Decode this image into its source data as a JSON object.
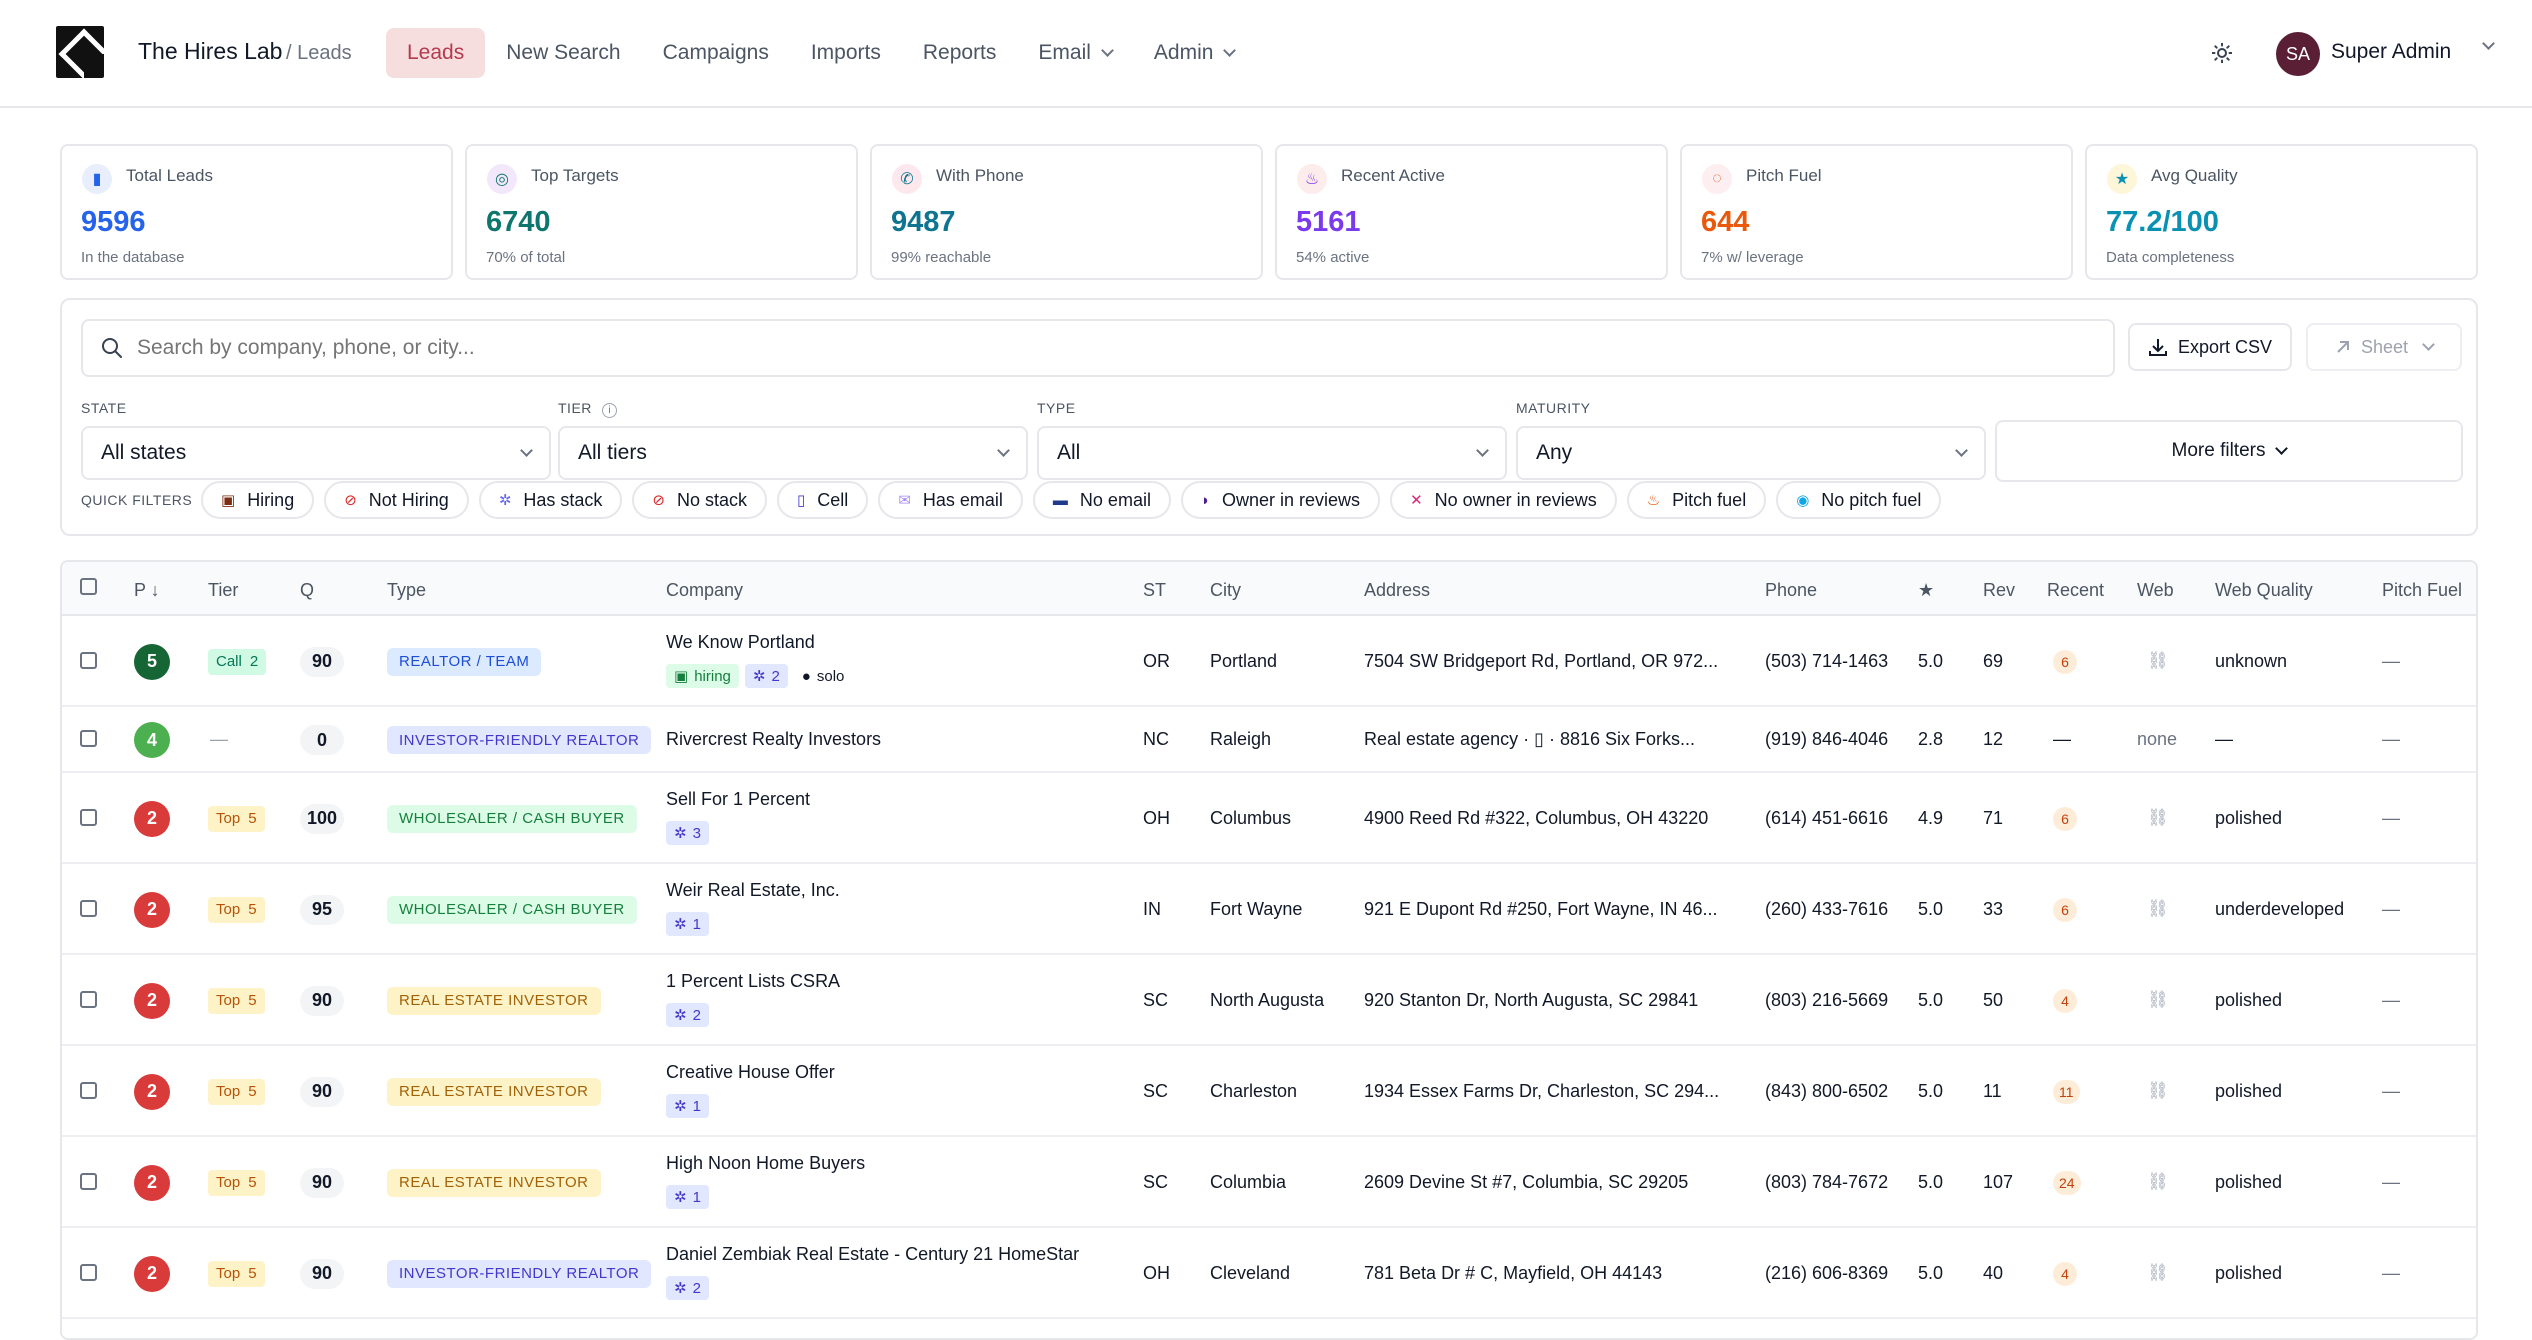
{
  "header": {
    "brand": "The Hires Lab",
    "breadcrumb": "/ Leads",
    "nav": [
      {
        "label": "Leads",
        "active": true,
        "dropdown": false
      },
      {
        "label": "New Search",
        "active": false,
        "dropdown": false
      },
      {
        "label": "Campaigns",
        "active": false,
        "dropdown": false
      },
      {
        "label": "Imports",
        "active": false,
        "dropdown": false
      },
      {
        "label": "Reports",
        "active": false,
        "dropdown": false
      },
      {
        "label": "Email",
        "active": false,
        "dropdown": true
      },
      {
        "label": "Admin",
        "active": false,
        "dropdown": true
      }
    ],
    "avatar_initials": "SA",
    "user_name": "Super Admin"
  },
  "stats": [
    {
      "label": "Total Leads",
      "value": "9596",
      "sub": "In the database",
      "color": "#2563eb",
      "icon": "bar-chart-icon",
      "glyph": "▮",
      "bg": "#e8eefc"
    },
    {
      "label": "Top Targets",
      "value": "6740",
      "sub": "70% of total",
      "color": "#0f766e",
      "icon": "target-icon",
      "glyph": "◎",
      "bg": "#f3e8fb"
    },
    {
      "label": "With Phone",
      "value": "9487",
      "sub": "99% reachable",
      "color": "#0e7490",
      "icon": "phone-icon",
      "glyph": "✆",
      "bg": "#fde8ee"
    },
    {
      "label": "Recent Active",
      "value": "5161",
      "sub": "54% active",
      "color": "#7c3aed",
      "icon": "fire-icon",
      "glyph": "♨",
      "bg": "#fdecec"
    },
    {
      "label": "Pitch Fuel",
      "value": "644",
      "sub": "7% w/ leverage",
      "color": "#ea580c",
      "icon": "speech-icon",
      "glyph": "◌",
      "bg": "#fdeef1"
    },
    {
      "label": "Avg Quality",
      "value": "77.2/100",
      "sub": "Data completeness",
      "color": "#0891b2",
      "icon": "star-icon",
      "glyph": "★",
      "bg": "#fdf6d8"
    }
  ],
  "filters": {
    "search_placeholder": "Search by company, phone, or city...",
    "export_label": "Export CSV",
    "sheet_label": "Sheet",
    "state_label": "STATE",
    "state_value": "All states",
    "tier_label": "TIER",
    "tier_info": "i",
    "tier_value": "All tiers",
    "type_label": "TYPE",
    "type_value": "All",
    "maturity_label": "MATURITY",
    "maturity_value": "Any",
    "more_label": "More filters",
    "quick_label": "QUICK FILTERS",
    "quick": [
      {
        "label": "Hiring",
        "icon": "briefcase-icon",
        "glyph": "▣",
        "color": "#7c2d12"
      },
      {
        "label": "Not Hiring",
        "icon": "no-entry-icon",
        "glyph": "⊘",
        "color": "#dc2626"
      },
      {
        "label": "Has stack",
        "icon": "gear-icon",
        "glyph": "✲",
        "color": "#6366f1"
      },
      {
        "label": "No stack",
        "icon": "prohibited-icon",
        "glyph": "⊘",
        "color": "#dc2626"
      },
      {
        "label": "Cell",
        "icon": "mobile-icon",
        "glyph": "▯",
        "color": "#4338ca"
      },
      {
        "label": "Has email",
        "icon": "envelope-icon",
        "glyph": "✉",
        "color": "#a78bfa"
      },
      {
        "label": "No email",
        "icon": "mailbox-icon",
        "glyph": "▬",
        "color": "#1e3a8a"
      },
      {
        "label": "Owner in reviews",
        "icon": "speaking-head-icon",
        "glyph": "◗",
        "color": "#4c1d95"
      },
      {
        "label": "No owner in reviews",
        "icon": "muted-icon",
        "glyph": "✕",
        "color": "#db2777"
      },
      {
        "label": "Pitch fuel",
        "icon": "fire-icon",
        "glyph": "♨",
        "color": "#ea580c"
      },
      {
        "label": "No pitch fuel",
        "icon": "droplet-icon",
        "glyph": "◉",
        "color": "#0ea5e9"
      }
    ]
  },
  "table": {
    "columns": [
      "P ↓",
      "Tier",
      "Q",
      "Type",
      "Company",
      "ST",
      "City",
      "Address",
      "Phone",
      "★",
      "Rev",
      "Recent",
      "Web",
      "Web Quality",
      "Pitch Fuel"
    ],
    "rows": [
      {
        "p": "5",
        "p_color": "#166534",
        "tier": "Call",
        "tier_num": "2",
        "tier_style": "call",
        "q": "90",
        "type": "REALTOR / TEAM",
        "type_style": "blue",
        "company": "We Know Portland",
        "tags": [
          {
            "icon": "briefcase-icon",
            "glyph": "▣",
            "text": "hiring",
            "style": "green"
          },
          {
            "icon": "gear-icon",
            "glyph": "✲",
            "text": "2",
            "style": "blue"
          },
          {
            "icon": "person-icon",
            "glyph": "●",
            "text": "solo",
            "style": "plain"
          }
        ],
        "st": "OR",
        "city": "Portland",
        "address": "7504 SW Bridgeport Rd, Portland, OR 972...",
        "phone": "(503) 714-1463",
        "rating": "5.0",
        "rev": "69",
        "recent": "6",
        "web": "link",
        "web_quality": "unknown",
        "pitch": "—"
      },
      {
        "p": "4",
        "p_color": "#4caf50",
        "tier": "—",
        "tier_num": "",
        "tier_style": "none",
        "q": "0",
        "type": "INVESTOR-FRIENDLY REALTOR",
        "type_style": "indigo",
        "company": "Rivercrest Realty Investors",
        "tags": [],
        "st": "NC",
        "city": "Raleigh",
        "address": "Real estate agency · ▯ · 8816 Six Forks...",
        "phone": "(919) 846-4046",
        "rating": "2.8",
        "rev": "12",
        "recent": "—",
        "web": "none",
        "web_quality": "—",
        "pitch": "—"
      },
      {
        "p": "2",
        "p_color": "#d93a3a",
        "tier": "Top",
        "tier_num": "5",
        "tier_style": "top",
        "q": "100",
        "type": "WHOLESALER / CASH BUYER",
        "type_style": "green",
        "company": "Sell For 1 Percent",
        "tags": [
          {
            "icon": "gear-icon",
            "glyph": "✲",
            "text": "3",
            "style": "blue"
          }
        ],
        "st": "OH",
        "city": "Columbus",
        "address": "4900 Reed Rd #322, Columbus, OH 43220",
        "phone": "(614) 451-6616",
        "rating": "4.9",
        "rev": "71",
        "recent": "6",
        "web": "link",
        "web_quality": "polished",
        "pitch": "—"
      },
      {
        "p": "2",
        "p_color": "#d93a3a",
        "tier": "Top",
        "tier_num": "5",
        "tier_style": "top",
        "q": "95",
        "type": "WHOLESALER / CASH BUYER",
        "type_style": "green",
        "company": "Weir Real Estate, Inc.",
        "tags": [
          {
            "icon": "gear-icon",
            "glyph": "✲",
            "text": "1",
            "style": "blue"
          }
        ],
        "st": "IN",
        "city": "Fort Wayne",
        "address": "921 E Dupont Rd #250, Fort Wayne, IN 46...",
        "phone": "(260) 433-7616",
        "rating": "5.0",
        "rev": "33",
        "recent": "6",
        "web": "link",
        "web_quality": "underdeveloped",
        "pitch": "—"
      },
      {
        "p": "2",
        "p_color": "#d93a3a",
        "tier": "Top",
        "tier_num": "5",
        "tier_style": "top",
        "q": "90",
        "type": "REAL ESTATE INVESTOR",
        "type_style": "yellow",
        "company": "1 Percent Lists CSRA",
        "tags": [
          {
            "icon": "gear-icon",
            "glyph": "✲",
            "text": "2",
            "style": "blue"
          }
        ],
        "st": "SC",
        "city": "North Augusta",
        "address": "920 Stanton Dr, North Augusta, SC 29841",
        "phone": "(803) 216-5669",
        "rating": "5.0",
        "rev": "50",
        "recent": "4",
        "web": "link",
        "web_quality": "polished",
        "pitch": "—"
      },
      {
        "p": "2",
        "p_color": "#d93a3a",
        "tier": "Top",
        "tier_num": "5",
        "tier_style": "top",
        "q": "90",
        "type": "REAL ESTATE INVESTOR",
        "type_style": "yellow",
        "company": "Creative House Offer",
        "tags": [
          {
            "icon": "gear-icon",
            "glyph": "✲",
            "text": "1",
            "style": "blue"
          }
        ],
        "st": "SC",
        "city": "Charleston",
        "address": "1934 Essex Farms Dr, Charleston, SC 294...",
        "phone": "(843) 800-6502",
        "rating": "5.0",
        "rev": "11",
        "recent": "11",
        "web": "link",
        "web_quality": "polished",
        "pitch": "—"
      },
      {
        "p": "2",
        "p_color": "#d93a3a",
        "tier": "Top",
        "tier_num": "5",
        "tier_style": "top",
        "q": "90",
        "type": "REAL ESTATE INVESTOR",
        "type_style": "yellow",
        "company": "High Noon Home Buyers",
        "tags": [
          {
            "icon": "gear-icon",
            "glyph": "✲",
            "text": "1",
            "style": "blue"
          }
        ],
        "st": "SC",
        "city": "Columbia",
        "address": "2609 Devine St #7, Columbia, SC 29205",
        "phone": "(803) 784-7672",
        "rating": "5.0",
        "rev": "107",
        "recent": "24",
        "web": "link",
        "web_quality": "polished",
        "pitch": "—"
      },
      {
        "p": "2",
        "p_color": "#d93a3a",
        "tier": "Top",
        "tier_num": "5",
        "tier_style": "top",
        "q": "90",
        "type": "INVESTOR-FRIENDLY REALTOR",
        "type_style": "indigo",
        "company": "Daniel Zembiak Real Estate - Century 21 HomeStar",
        "tags": [
          {
            "icon": "gear-icon",
            "glyph": "✲",
            "text": "2",
            "style": "blue"
          }
        ],
        "st": "OH",
        "city": "Cleveland",
        "address": "781 Beta Dr # C, Mayfield, OH 44143",
        "phone": "(216) 606-8369",
        "rating": "5.0",
        "rev": "40",
        "recent": "4",
        "web": "link",
        "web_quality": "polished",
        "pitch": "—"
      }
    ]
  }
}
